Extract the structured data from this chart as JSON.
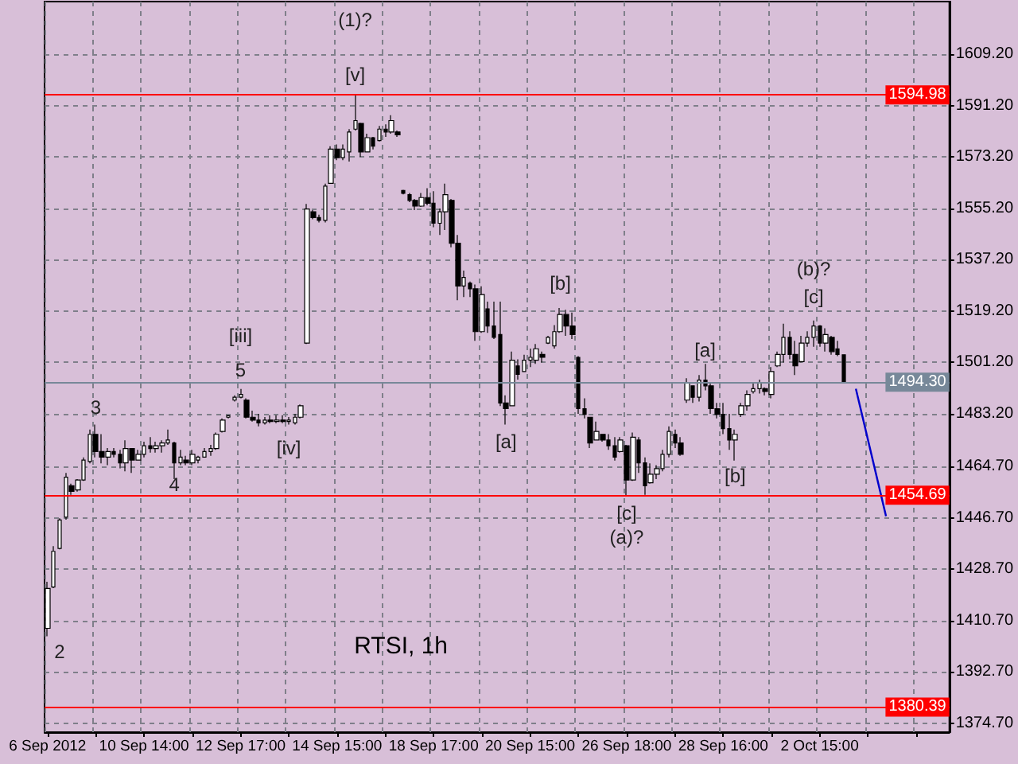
{
  "chart_data": {
    "type": "candlestick",
    "title": "RTSI, 1h",
    "categories": [
      "6 Sep 2012",
      null,
      null,
      null,
      null,
      null,
      null,
      null,
      null,
      null,
      null,
      null,
      null,
      null,
      null,
      null,
      "10 Sep 14:00",
      null,
      null,
      null,
      null,
      null,
      null,
      null,
      null,
      null,
      null,
      null,
      null,
      null,
      null,
      null,
      "12 Sep 17:00",
      null,
      null,
      null,
      null,
      null,
      null,
      null,
      null,
      null,
      null,
      null,
      null,
      null,
      null,
      null,
      "14 Sep 15:00",
      null,
      null,
      null,
      null,
      null,
      null,
      null,
      null,
      null,
      null,
      null,
      null,
      null,
      null,
      null,
      "18 Sep 17:00",
      null,
      null,
      null,
      null,
      null,
      null,
      null,
      null,
      null,
      null,
      null,
      null,
      null,
      null,
      null,
      "20 Sep 15:00",
      null,
      null,
      null,
      null,
      null,
      null,
      null,
      null,
      null,
      null,
      null,
      null,
      null,
      null,
      null,
      "26 Sep 18:00",
      null,
      null,
      null,
      null,
      null,
      null,
      null,
      null,
      null,
      null,
      null,
      null,
      null,
      null,
      null,
      "28 Sep 16:00",
      null,
      null,
      null,
      null,
      null,
      null,
      null,
      null,
      null,
      null,
      null,
      null,
      null,
      null,
      null,
      "2 Oct 15:00",
      null,
      null,
      null,
      null,
      null,
      null,
      null,
      null,
      null,
      null,
      null,
      null,
      null,
      null,
      null,
      null,
      null,
      null,
      null,
      null,
      null
    ],
    "ohlc": [
      [
        1408,
        1424.3,
        1405.2,
        1422
      ],
      [
        1422.5,
        1436.8,
        1422.1,
        1435
      ],
      [
        1436,
        1446.6,
        1435.7,
        1446
      ],
      [
        1447,
        1462.5,
        1446.1,
        1461
      ],
      [
        1458,
        1458.7,
        1454.8,
        1456
      ],
      [
        1456.5,
        1460.3,
        1455.9,
        1460
      ],
      [
        1460,
        1467.9,
        1459.7,
        1467
      ],
      [
        1466.5,
        1477.7,
        1465.8,
        1476
      ],
      [
        1476,
        1479.4,
        1467.9,
        1470
      ],
      [
        1470,
        1476.1,
        1465.8,
        1468
      ],
      [
        1468,
        1471.2,
        1465.2,
        1470
      ],
      [
        1470,
        1471.2,
        1467.9,
        1469
      ],
      [
        1469,
        1470.6,
        1464.1,
        1466
      ],
      [
        1466,
        1473.9,
        1463,
        1471
      ],
      [
        1471,
        1471.2,
        1462.5,
        1467
      ],
      [
        1467,
        1470.6,
        1466.8,
        1469
      ],
      [
        1469,
        1473.4,
        1467.9,
        1472
      ],
      [
        1472,
        1475,
        1469.6,
        1471
      ],
      [
        1471,
        1473.4,
        1469.6,
        1472
      ],
      [
        1472,
        1473.9,
        1469.6,
        1473
      ],
      [
        1473,
        1477.7,
        1472.3,
        1474
      ],
      [
        1473,
        1473.4,
        1460.3,
        1466
      ],
      [
        1466,
        1470.6,
        1465.2,
        1468
      ],
      [
        1467,
        1468.5,
        1465.2,
        1466
      ],
      [
        1466,
        1470.6,
        1465.2,
        1469
      ],
      [
        1467,
        1468.5,
        1465.8,
        1468
      ],
      [
        1468,
        1471.2,
        1467.9,
        1470
      ],
      [
        1470,
        1472.3,
        1468.5,
        1471
      ],
      [
        1471,
        1476.6,
        1470.6,
        1476
      ],
      [
        1477,
        1481.6,
        1476.6,
        1481
      ],
      [
        1482,
        1482.7,
        1481.6,
        1482.5
      ],
      [
        1488,
        1489.7,
        1487.5,
        1489
      ],
      [
        1489,
        1491.9,
        1488.6,
        1490
      ],
      [
        1488,
        1488.6,
        1481.6,
        1482
      ],
      [
        1482,
        1484.3,
        1480.5,
        1481
      ],
      [
        1481,
        1483.2,
        1478.8,
        1480
      ],
      [
        1480,
        1482.1,
        1479.4,
        1481
      ],
      [
        1481,
        1482.7,
        1479.9,
        1480.5
      ],
      [
        1480.5,
        1482.7,
        1479.9,
        1481
      ],
      [
        1481,
        1482.7,
        1479.9,
        1480.5
      ],
      [
        1480.5,
        1482.1,
        1479.4,
        1481
      ],
      [
        1480,
        1483.2,
        1479.4,
        1482
      ],
      [
        1482,
        1486.5,
        1481.6,
        1486
      ],
      [
        1508,
        1556.8,
        1507.7,
        1555
      ],
      [
        1554,
        1554.6,
        1551.4,
        1552
      ],
      [
        1552,
        1553,
        1550.3,
        1551
      ],
      [
        1551,
        1563.9,
        1550.3,
        1563
      ],
      [
        1564,
        1577,
        1563.9,
        1576
      ],
      [
        1576,
        1577.6,
        1572.1,
        1573
      ],
      [
        1573,
        1577.6,
        1572.1,
        1576
      ],
      [
        1575,
        1583,
        1571.6,
        1582
      ],
      [
        1583,
        1595,
        1582.5,
        1586
      ],
      [
        1585,
        1585.2,
        1573.2,
        1575
      ],
      [
        1575,
        1581.4,
        1574.8,
        1580
      ],
      [
        1580,
        1580.3,
        1575.9,
        1577
      ],
      [
        1579,
        1584.1,
        1578.7,
        1583
      ],
      [
        1583,
        1584.7,
        1580.3,
        1582
      ],
      [
        1582,
        1587.9,
        1581.4,
        1586
      ],
      [
        1582,
        1582.5,
        1580.3,
        1581
      ],
      [
        1561.5,
        1561.7,
        1560.1,
        1560.5
      ],
      [
        1560,
        1560.6,
        1557.4,
        1558
      ],
      [
        1558,
        1558.5,
        1554.6,
        1556
      ],
      [
        1556,
        1560.6,
        1555.7,
        1559
      ],
      [
        1559,
        1562.3,
        1556.3,
        1557
      ],
      [
        1557,
        1561.2,
        1548.6,
        1550
      ],
      [
        1550,
        1555.2,
        1545.9,
        1554
      ],
      [
        1554,
        1563.9,
        1547.6,
        1560
      ],
      [
        1558,
        1558.5,
        1541.6,
        1543
      ],
      [
        1543,
        1545.9,
        1523,
        1528
      ],
      [
        1528,
        1533.4,
        1524.1,
        1531
      ],
      [
        1529,
        1529.6,
        1524.1,
        1527
      ],
      [
        1527,
        1528.5,
        1508.8,
        1512
      ],
      [
        1512,
        1527.9,
        1511.6,
        1525
      ],
      [
        1520,
        1522.5,
        1511.6,
        1514
      ],
      [
        1514,
        1522.5,
        1509.4,
        1510
      ],
      [
        1511,
        1522.5,
        1485.9,
        1487
      ],
      [
        1487,
        1489.7,
        1479.4,
        1485
      ],
      [
        1486,
        1505,
        1485.9,
        1502
      ],
      [
        1500,
        1502.3,
        1495.2,
        1497
      ],
      [
        1498,
        1503.9,
        1497.9,
        1502
      ],
      [
        1502,
        1506.1,
        1499.6,
        1503
      ],
      [
        1502,
        1507.7,
        1500.7,
        1506
      ],
      [
        1504,
        1505,
        1501.2,
        1503
      ],
      [
        1508,
        1510.5,
        1507.7,
        1510
      ],
      [
        1507,
        1514.3,
        1506.1,
        1512
      ],
      [
        1512,
        1520.3,
        1511.6,
        1518
      ],
      [
        1518,
        1519.7,
        1510.5,
        1514
      ],
      [
        1514,
        1518.7,
        1509.4,
        1511
      ],
      [
        1503,
        1503.4,
        1483.2,
        1485
      ],
      [
        1485,
        1488.6,
        1481.6,
        1483
      ],
      [
        1482,
        1482.1,
        1471.2,
        1473
      ],
      [
        1474,
        1480.5,
        1473.9,
        1477
      ],
      [
        1476,
        1476.1,
        1473.4,
        1474
      ],
      [
        1474,
        1476.1,
        1470.6,
        1472
      ],
      [
        1472,
        1475,
        1466.8,
        1468
      ],
      [
        1470,
        1475,
        1469.6,
        1474
      ],
      [
        1472,
        1472.3,
        1454.7,
        1460
      ],
      [
        1460,
        1476.6,
        1459.7,
        1475
      ],
      [
        1474,
        1475,
        1462.5,
        1466
      ],
      [
        1466,
        1467.9,
        1454.8,
        1458
      ],
      [
        1459,
        1465.8,
        1458.7,
        1462
      ],
      [
        1462,
        1465.2,
        1460.3,
        1464
      ],
      [
        1464,
        1470.6,
        1463,
        1469
      ],
      [
        1469,
        1478.8,
        1467.9,
        1477
      ],
      [
        1476,
        1477.7,
        1471.2,
        1473
      ],
      [
        1473,
        1475,
        1468.5,
        1469
      ],
      [
        1488,
        1495.7,
        1487,
        1494
      ],
      [
        1493,
        1493,
        1487,
        1489
      ],
      [
        1489,
        1496.8,
        1487.5,
        1495
      ],
      [
        1495,
        1500.7,
        1491.4,
        1493
      ],
      [
        1493,
        1494.1,
        1483.2,
        1485
      ],
      [
        1485,
        1487,
        1481.6,
        1483
      ],
      [
        1483,
        1487,
        1476.1,
        1478
      ],
      [
        1478,
        1483.2,
        1470.6,
        1474
      ],
      [
        1474,
        1477.7,
        1466.8,
        1476
      ],
      [
        1483,
        1487,
        1482.1,
        1486
      ],
      [
        1486,
        1491.4,
        1484.3,
        1490
      ],
      [
        1491,
        1494.1,
        1490.3,
        1492
      ],
      [
        1492,
        1495.2,
        1490.3,
        1494
      ],
      [
        1492,
        1492.5,
        1489.7,
        1491
      ],
      [
        1490,
        1499.6,
        1488.6,
        1498
      ],
      [
        1500,
        1505,
        1499.6,
        1504
      ],
      [
        1504,
        1514.8,
        1501.2,
        1510
      ],
      [
        1510,
        1512.1,
        1502.3,
        1504
      ],
      [
        1504,
        1508.8,
        1496.8,
        1500
      ],
      [
        1501.5,
        1510.5,
        1501.2,
        1508
      ],
      [
        1508,
        1512.1,
        1506.7,
        1510
      ],
      [
        1510,
        1515.9,
        1506.7,
        1514
      ],
      [
        1514,
        1514.3,
        1506.7,
        1508
      ],
      [
        1508,
        1513.2,
        1505,
        1511
      ],
      [
        1510,
        1510.5,
        1503.9,
        1505
      ],
      [
        1506,
        1508.8,
        1503.4,
        1504
      ],
      [
        1503.9,
        1503.9,
        1494.1,
        1494.3
      ],
      null,
      null,
      null,
      null,
      null,
      null,
      null,
      null,
      null,
      null,
      null,
      null,
      null,
      null,
      null,
      null,
      null
    ],
    "series": [
      {
        "type": "line",
        "color": "#0000cc",
        "values": [
          null,
          null,
          null,
          null,
          null,
          null,
          null,
          null,
          null,
          null,
          null,
          null,
          null,
          null,
          null,
          null,
          null,
          null,
          null,
          null,
          null,
          null,
          null,
          null,
          null,
          null,
          null,
          null,
          null,
          null,
          null,
          null,
          null,
          null,
          null,
          null,
          null,
          null,
          null,
          null,
          null,
          null,
          null,
          null,
          null,
          null,
          null,
          null,
          null,
          null,
          null,
          null,
          null,
          null,
          null,
          null,
          null,
          null,
          null,
          null,
          null,
          null,
          null,
          null,
          null,
          null,
          null,
          null,
          null,
          null,
          null,
          null,
          null,
          null,
          null,
          null,
          null,
          null,
          null,
          null,
          null,
          null,
          null,
          null,
          null,
          null,
          null,
          null,
          null,
          null,
          null,
          null,
          null,
          null,
          null,
          null,
          null,
          null,
          null,
          null,
          null,
          null,
          null,
          null,
          null,
          null,
          null,
          null,
          null,
          null,
          null,
          null,
          null,
          null,
          null,
          null,
          null,
          null,
          null,
          null,
          null,
          null,
          null,
          null,
          null,
          null,
          null,
          null,
          null,
          null,
          null,
          null,
          null,
          null,
          1492.0,
          null,
          null,
          null,
          null,
          1447.3,
          null,
          null,
          null,
          null,
          null,
          null,
          null,
          null,
          null,
          null
        ]
      }
    ],
    "ylim": [
      1371.6,
      1627.7
    ],
    "yticks": [
      {
        "value": 1374.7,
        "label": "1374.70"
      },
      {
        "value": 1392.7,
        "label": "1392.70"
      },
      {
        "value": 1410.7,
        "label": "1410.70"
      },
      {
        "value": 1428.7,
        "label": "1428.70"
      },
      {
        "value": 1446.7,
        "label": "1446.70"
      },
      {
        "value": 1464.7,
        "label": "1464.70"
      },
      {
        "value": 1483.2,
        "label": "1483.20"
      },
      {
        "value": 1501.2,
        "label": "1501.20"
      },
      {
        "value": 1519.2,
        "label": "1519.20"
      },
      {
        "value": 1537.2,
        "label": "1537.20"
      },
      {
        "value": 1555.2,
        "label": "1555.20"
      },
      {
        "value": 1573.2,
        "label": "1573.20"
      },
      {
        "value": 1591.2,
        "label": "1591.20"
      },
      {
        "value": 1609.2,
        "label": "1609.20"
      }
    ],
    "ref_lines": [
      {
        "axis": "y",
        "value": 1594.98,
        "label": "1594.98",
        "color": "#ff0000"
      },
      {
        "axis": "y",
        "value": 1494.3,
        "label": "1494.30",
        "color": "#778899"
      },
      {
        "axis": "y",
        "value": 1454.69,
        "label": "1454.69",
        "color": "#ff0000"
      },
      {
        "axis": "y",
        "value": 1380.39,
        "label": "1380.39",
        "color": "#ff0000"
      }
    ],
    "annotations": [
      "2",
      "3",
      "4",
      "[iii]",
      "5",
      "[iv]",
      "(1)?",
      "[v]",
      "[a]",
      "[b]",
      "[c]",
      "(a)?",
      "[a]",
      "[b]",
      "[c]",
      "(b)?"
    ],
    "grid": true,
    "marker": "none"
  }
}
